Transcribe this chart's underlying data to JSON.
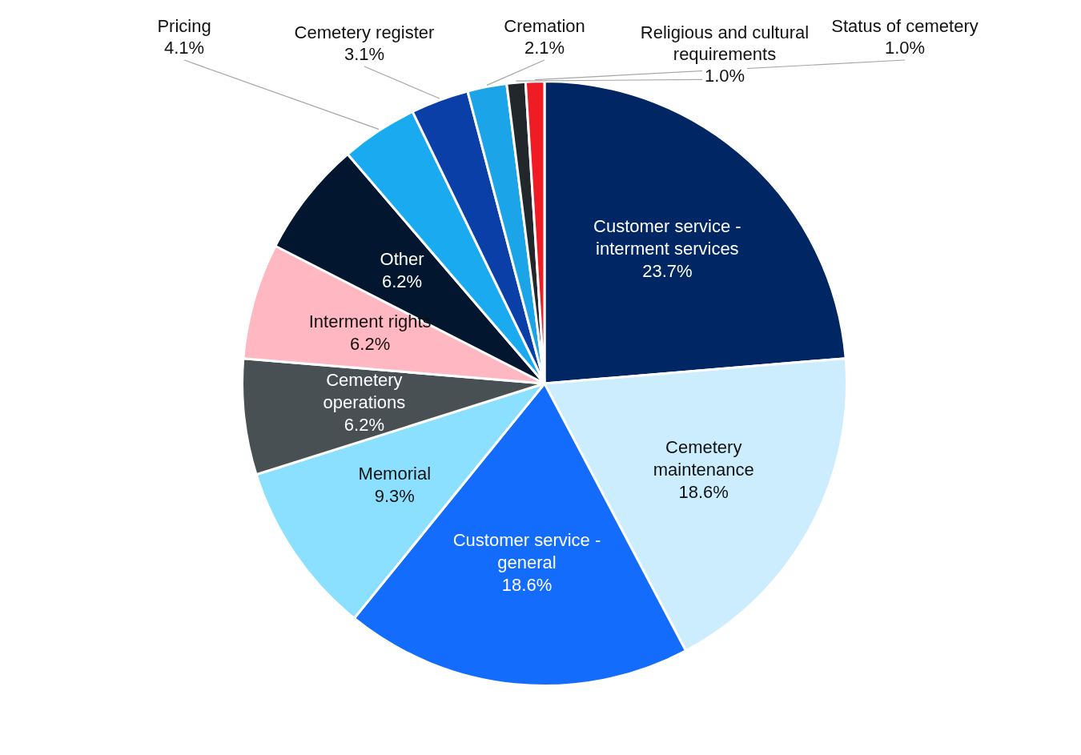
{
  "chart_data": {
    "type": "pie",
    "categories": [
      "Customer service - interment services",
      "Cemetery maintenance",
      "Customer service - general",
      "Memorial",
      "Cemetery operations",
      "Interment rights",
      "Other",
      "Pricing",
      "Cemetery register",
      "Cremation",
      "Religious and cultural requirements",
      "Status of cemetery"
    ],
    "values": [
      23.7,
      18.6,
      18.6,
      9.3,
      6.2,
      6.2,
      6.2,
      4.1,
      3.1,
      2.1,
      1.0,
      1.0
    ],
    "value_labels": [
      "23.7%",
      "18.6%",
      "18.6%",
      "9.3%",
      "6.2%",
      "6.2%",
      "6.2%",
      "4.1%",
      "3.1%",
      "2.1%",
      "1.0%",
      "1.0%"
    ],
    "colors": [
      "#002664",
      "#cbedfd",
      "#146cfd",
      "#8ce0ff",
      "#495054",
      "#ffb8c1",
      "#02172f",
      "#1aaaf0",
      "#0a3fa8",
      "#1ba5e8",
      "#22272b",
      "#ee1c25"
    ],
    "legend": false
  }
}
